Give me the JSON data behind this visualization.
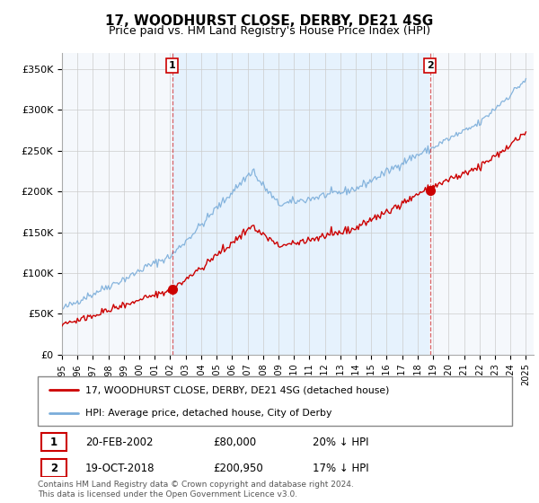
{
  "title": "17, WOODHURST CLOSE, DERBY, DE21 4SG",
  "subtitle": "Price paid vs. HM Land Registry's House Price Index (HPI)",
  "footer": "Contains HM Land Registry data © Crown copyright and database right 2024.\nThis data is licensed under the Open Government Licence v3.0.",
  "legend_line1": "17, WOODHURST CLOSE, DERBY, DE21 4SG (detached house)",
  "legend_line2": "HPI: Average price, detached house, City of Derby",
  "sale1_x": 2002.12,
  "sale1_y": 80000,
  "sale2_x": 2018.79,
  "sale2_y": 200950,
  "ylabel_ticks": [
    "£0",
    "£50K",
    "£100K",
    "£150K",
    "£200K",
    "£250K",
    "£300K",
    "£350K"
  ],
  "ytick_values": [
    0,
    50000,
    100000,
    150000,
    200000,
    250000,
    300000,
    350000
  ],
  "ylim": [
    0,
    370000
  ],
  "xlim_start": 1995.0,
  "xlim_end": 2025.5,
  "hpi_color": "#7aadda",
  "price_color": "#cc0000",
  "bg_between": "#ddeeff",
  "background_color": "#ffffff",
  "grid_color": "#cccccc",
  "title_fontsize": 11,
  "subtitle_fontsize": 9
}
